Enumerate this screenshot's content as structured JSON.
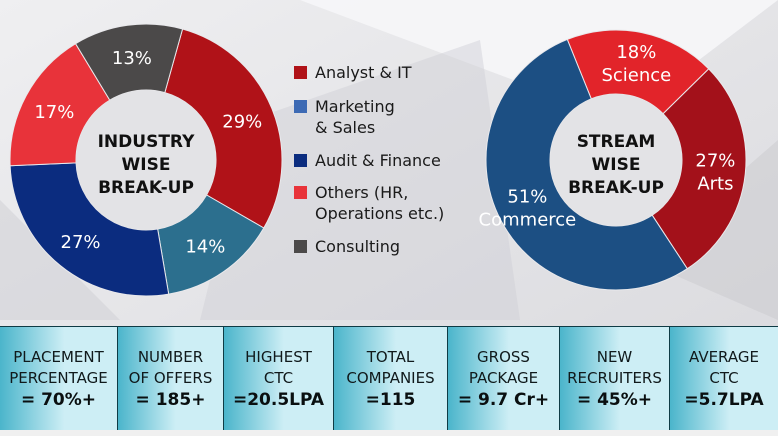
{
  "colors": {
    "analyst_it": "#b01218",
    "marketing_sales": "#3d6ab4",
    "audit_finance": "#0b2c7f",
    "others": "#e8333a",
    "consulting": "#4b4949",
    "industry_14_teal": "#2c6f8e",
    "science": "#e2242a",
    "arts": "#a3111a",
    "commerce": "#1c4f83",
    "stats_light": "#cdeef5",
    "stats_dark": "#4bb5cb"
  },
  "chart_data": [
    {
      "type": "pie",
      "variant": "donut",
      "title": "INDUSTRY WISE BREAK-UP",
      "slices": [
        {
          "name": "Analyst & IT",
          "value": 29,
          "label": "29%",
          "color_key": "analyst_it"
        },
        {
          "name": "Marketing & Sales",
          "value": 14,
          "label": "14%",
          "color_key": "industry_14_teal"
        },
        {
          "name": "Audit & Finance",
          "value": 27,
          "label": "27%",
          "color_key": "audit_finance"
        },
        {
          "name": "Others",
          "value": 17,
          "label": "17%",
          "color_key": "others"
        },
        {
          "name": "Consulting",
          "value": 13,
          "label": "13%",
          "color_key": "consulting"
        }
      ],
      "legend": [
        {
          "label": "Analyst & IT",
          "color_key": "analyst_it"
        },
        {
          "label": "Marketing\n& Sales",
          "color_key": "marketing_sales"
        },
        {
          "label": "Audit & Finance",
          "color_key": "audit_finance"
        },
        {
          "label": "Others (HR,\nOperations etc.)",
          "color_key": "others"
        },
        {
          "label": "Consulting",
          "color_key": "consulting"
        }
      ],
      "legend_position": "right"
    },
    {
      "type": "pie",
      "variant": "donut",
      "title": "STREAM WISE BREAK-UP",
      "slices": [
        {
          "name": "Science",
          "value": 18,
          "label": "18%",
          "sublabel": "Science",
          "color_key": "science"
        },
        {
          "name": "Arts",
          "value": 27,
          "label": "27%",
          "sublabel": "Arts",
          "color_key": "arts"
        },
        {
          "name": "Commerce",
          "value": 51,
          "label": "51%",
          "sublabel": "Commerce",
          "color_key": "commerce"
        }
      ]
    }
  ],
  "stats": [
    {
      "label": "PLACEMENT\nPERCENTAGE",
      "value": "= 70%+"
    },
    {
      "label": "NUMBER\nOF OFFERS",
      "value": "= 185+"
    },
    {
      "label": "HIGHEST\nCTC",
      "value": "=20.5LPA"
    },
    {
      "label": "TOTAL\nCOMPANIES",
      "value": "=115"
    },
    {
      "label": "GROSS\nPACKAGE",
      "value": "= 9.7 Cr+"
    },
    {
      "label": "NEW\nRECRUITERS",
      "value": "= 45%+"
    },
    {
      "label": "AVERAGE\nCTC",
      "value": "=5.7LPA"
    }
  ]
}
